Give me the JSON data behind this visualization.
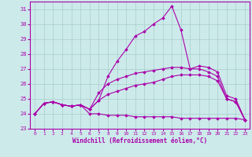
{
  "xlabel": "Windchill (Refroidissement éolien,°C)",
  "background_color": "#cceaea",
  "grid_color": "#aacccc",
  "line_color": "#aa00aa",
  "xlim": [
    -0.5,
    23.5
  ],
  "ylim": [
    23,
    31.5
  ],
  "yticks": [
    23,
    24,
    25,
    26,
    27,
    28,
    29,
    30,
    31
  ],
  "xticks": [
    0,
    1,
    2,
    3,
    4,
    5,
    6,
    7,
    8,
    9,
    10,
    11,
    12,
    13,
    14,
    15,
    16,
    17,
    18,
    19,
    20,
    21,
    22,
    23
  ],
  "series": [
    [
      24.0,
      24.7,
      24.8,
      24.6,
      24.5,
      24.6,
      24.3,
      24.9,
      26.5,
      27.5,
      28.3,
      29.2,
      29.5,
      30.0,
      30.4,
      31.2,
      29.6,
      27.0,
      27.0,
      26.8,
      26.5,
      25.0,
      24.8,
      23.6
    ],
    [
      24.0,
      24.7,
      24.8,
      24.6,
      24.5,
      24.6,
      24.3,
      25.4,
      26.0,
      26.3,
      26.5,
      26.7,
      26.8,
      26.9,
      27.0,
      27.1,
      27.1,
      27.0,
      27.2,
      27.1,
      26.8,
      25.2,
      25.0,
      23.6
    ],
    [
      24.0,
      24.7,
      24.8,
      24.6,
      24.5,
      24.6,
      24.3,
      24.9,
      25.3,
      25.5,
      25.7,
      25.9,
      26.0,
      26.1,
      26.3,
      26.5,
      26.6,
      26.6,
      26.6,
      26.5,
      26.2,
      25.0,
      24.8,
      23.6
    ],
    [
      24.0,
      24.7,
      24.8,
      24.6,
      24.5,
      24.6,
      24.0,
      24.0,
      23.9,
      23.9,
      23.9,
      23.8,
      23.8,
      23.8,
      23.8,
      23.8,
      23.7,
      23.7,
      23.7,
      23.7,
      23.7,
      23.7,
      23.7,
      23.6
    ]
  ]
}
